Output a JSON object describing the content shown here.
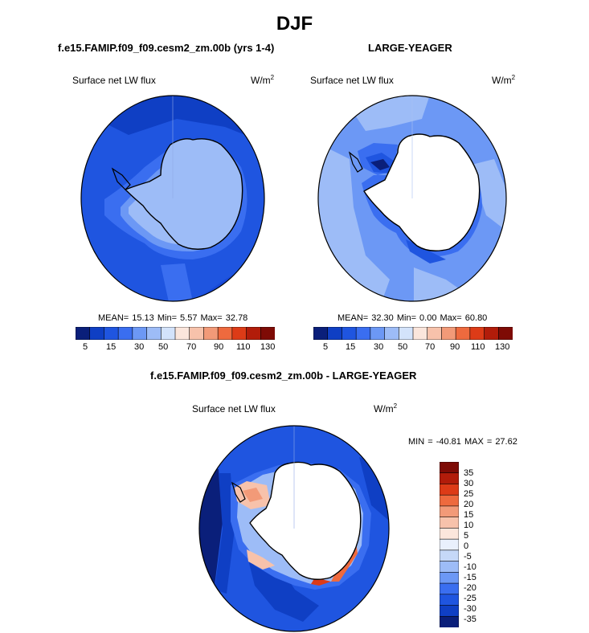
{
  "title": "DJF",
  "panels": [
    {
      "case_title": "f.e15.FAMIP.f09_f09.cesm2_zm.00b (yrs 1-4)",
      "variable": "Surface net LW flux",
      "units": "W/m",
      "units_sup": "2",
      "stats": "MEAN=  15.13  Min=   5.57  Max=  32.78",
      "colorbar_ticks": [
        "5",
        "15",
        "30",
        "50",
        "70",
        "90",
        "110",
        "130"
      ]
    },
    {
      "case_title": "LARGE-YEAGER",
      "variable": "Surface net LW flux",
      "units": "W/m",
      "units_sup": "2",
      "stats": "MEAN=  32.30  Min=   0.00  Max=  60.80",
      "colorbar_ticks": [
        "5",
        "15",
        "30",
        "50",
        "70",
        "90",
        "110",
        "130"
      ]
    },
    {
      "case_title": "f.e15.FAMIP.f09_f09.cesm2_zm.00b - LARGE-YEAGER",
      "variable": "Surface net LW flux",
      "units": "W/m",
      "units_sup": "2",
      "stats": "MIN = -40.81 MAX =  27.62",
      "colorbar_ticks": [
        "35",
        "30",
        "25",
        "20",
        "15",
        "10",
        "5",
        "0",
        "-5",
        "-10",
        "-15",
        "-20",
        "-25",
        "-30",
        "-35"
      ]
    }
  ],
  "colors": {
    "abs_scale": [
      "#0a1f7a",
      "#0f3fc4",
      "#1f55e0",
      "#3a6ef0",
      "#6c98f5",
      "#9dbcf7",
      "#d3e3fb",
      "#fbe6dc",
      "#f7c2ab",
      "#f29a78",
      "#ee6a3e",
      "#dd3b17",
      "#b21c0a",
      "#7e0b05"
    ],
    "diff_scale": [
      "#7e0b05",
      "#b21c0a",
      "#dd3b17",
      "#ee6a3e",
      "#f29a78",
      "#f7c2ab",
      "#fbe6dc",
      "#e9f0fc",
      "#c5d8f8",
      "#9dbcf7",
      "#6c98f5",
      "#3a6ef0",
      "#1f55e0",
      "#0f3fc4",
      "#0a1f7a"
    ]
  },
  "chart_data": [
    {
      "type": "heatmap",
      "projection": "south-polar-stereographic",
      "title": "f.e15.FAMIP.f09_f09.cesm2_zm.00b (yrs 1-4)",
      "variable": "Surface net LW flux",
      "units": "W/m2",
      "mean": 15.13,
      "min": 5.57,
      "max": 32.78,
      "contour_levels": [
        5,
        10,
        15,
        20,
        30,
        40,
        50,
        60,
        70,
        80,
        90,
        100,
        110,
        120,
        130
      ],
      "colorbar_ticks": [
        5,
        15,
        30,
        50,
        70,
        90,
        110,
        130
      ]
    },
    {
      "type": "heatmap",
      "projection": "south-polar-stereographic",
      "title": "LARGE-YEAGER",
      "variable": "Surface net LW flux",
      "units": "W/m2",
      "mean": 32.3,
      "min": 0.0,
      "max": 60.8,
      "contour_levels": [
        5,
        10,
        15,
        20,
        30,
        40,
        50,
        60,
        70,
        80,
        90,
        100,
        110,
        120,
        130
      ],
      "colorbar_ticks": [
        5,
        15,
        30,
        50,
        70,
        90,
        110,
        130
      ]
    },
    {
      "type": "heatmap",
      "projection": "south-polar-stereographic",
      "title": "f.e15.FAMIP.f09_f09.cesm2_zm.00b - LARGE-YEAGER",
      "variable": "Surface net LW flux",
      "units": "W/m2",
      "min": -40.81,
      "max": 27.62,
      "contour_levels": [
        35,
        30,
        25,
        20,
        15,
        10,
        5,
        0,
        -5,
        -10,
        -15,
        -20,
        -25,
        -30,
        -35
      ],
      "colorbar_ticks": [
        35,
        30,
        25,
        20,
        15,
        10,
        5,
        0,
        -5,
        -10,
        -15,
        -20,
        -25,
        -30,
        -35
      ]
    }
  ]
}
